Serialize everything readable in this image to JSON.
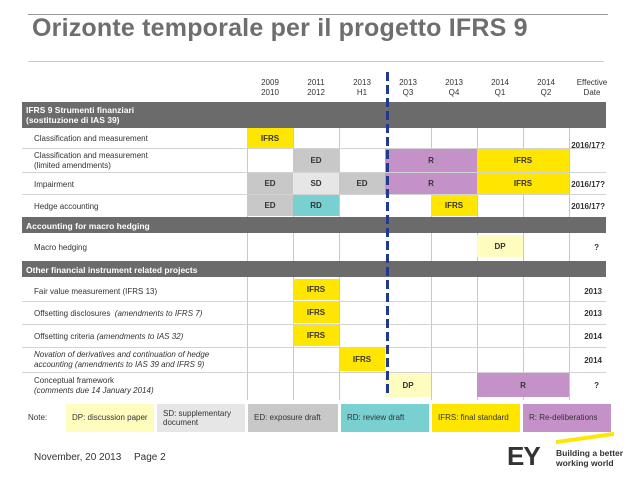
{
  "title": "Orizonte temporale per il progetto IFRS 9",
  "columns": [
    {
      "line1": "2009",
      "line2": "2010"
    },
    {
      "line1": "2011",
      "line2": "2012"
    },
    {
      "line1": "2013",
      "line2": "H1"
    },
    {
      "line1": "2013",
      "line2": "Q3"
    },
    {
      "line1": "2013",
      "line2": "Q4"
    },
    {
      "line1": "2014",
      "line2": "Q1"
    },
    {
      "line1": "2014",
      "line2": "Q2"
    },
    {
      "line1": "Effective",
      "line2": "Date"
    }
  ],
  "sections": {
    "s1_line1": "IFRS 9 Strumenti finanziari",
    "s1_line2": "(sostituzione di IAS 39)",
    "s2": "Accounting for macro hedging",
    "s3": "Other financial instrument related projects"
  },
  "rows": {
    "r1": "Classification and measurement",
    "r2a": "Classification and measurement",
    "r2b": "(limited amendments)",
    "r3": "Impairment",
    "r4": "Hedge accounting",
    "r5": "Macro hedging",
    "r6": "Fair value measurement (IFRS 13)",
    "r7a": "Offsetting disclosures",
    "r7b": "(amendments to IFRS 7)",
    "r8a": "Offsetting criteria",
    "r8b": "(amendments to IAS 32)",
    "r9a": "Novation of derivatives and continuation of hedge",
    "r9b": "accounting (amendments to IAS 39 and IFRS 9)",
    "r10a": "Conceptual framework",
    "r10b": "(comments due 14 January 2014)"
  },
  "cells": {
    "ifrs": "IFRS",
    "ed": "ED",
    "sd": "SD",
    "rd": "RD",
    "r": "R",
    "dp": "DP"
  },
  "effective": {
    "r1r2": "2016/17?",
    "r3": "2016/17?",
    "r4": "2016/17?",
    "r5": "?",
    "r6": "2013",
    "r7": "2013",
    "r8": "2014",
    "r9": "2014",
    "r10": "?"
  },
  "legend": {
    "note": "Note:",
    "dp": "DP: discussion paper",
    "sd": "SD: supplementary document",
    "ed": "ED: exposure draft",
    "rd": "RD: review draft",
    "ifrs": "IFRS: final standard",
    "r": "R: Re-deliberations"
  },
  "footer": {
    "date": "November, 20 2013",
    "page": "Page 2",
    "logo": "EY",
    "tagline1": "Building a better",
    "tagline2": "working world"
  },
  "colors": {
    "ifrs": "#ffe600",
    "ed": "#c8c8c8",
    "sd": "#e6e6e6",
    "rd": "#79d0d0",
    "r": "#c492c8",
    "dp": "#fffcc0",
    "section": "#6b6b6b",
    "marker": "#1f3a8f"
  }
}
